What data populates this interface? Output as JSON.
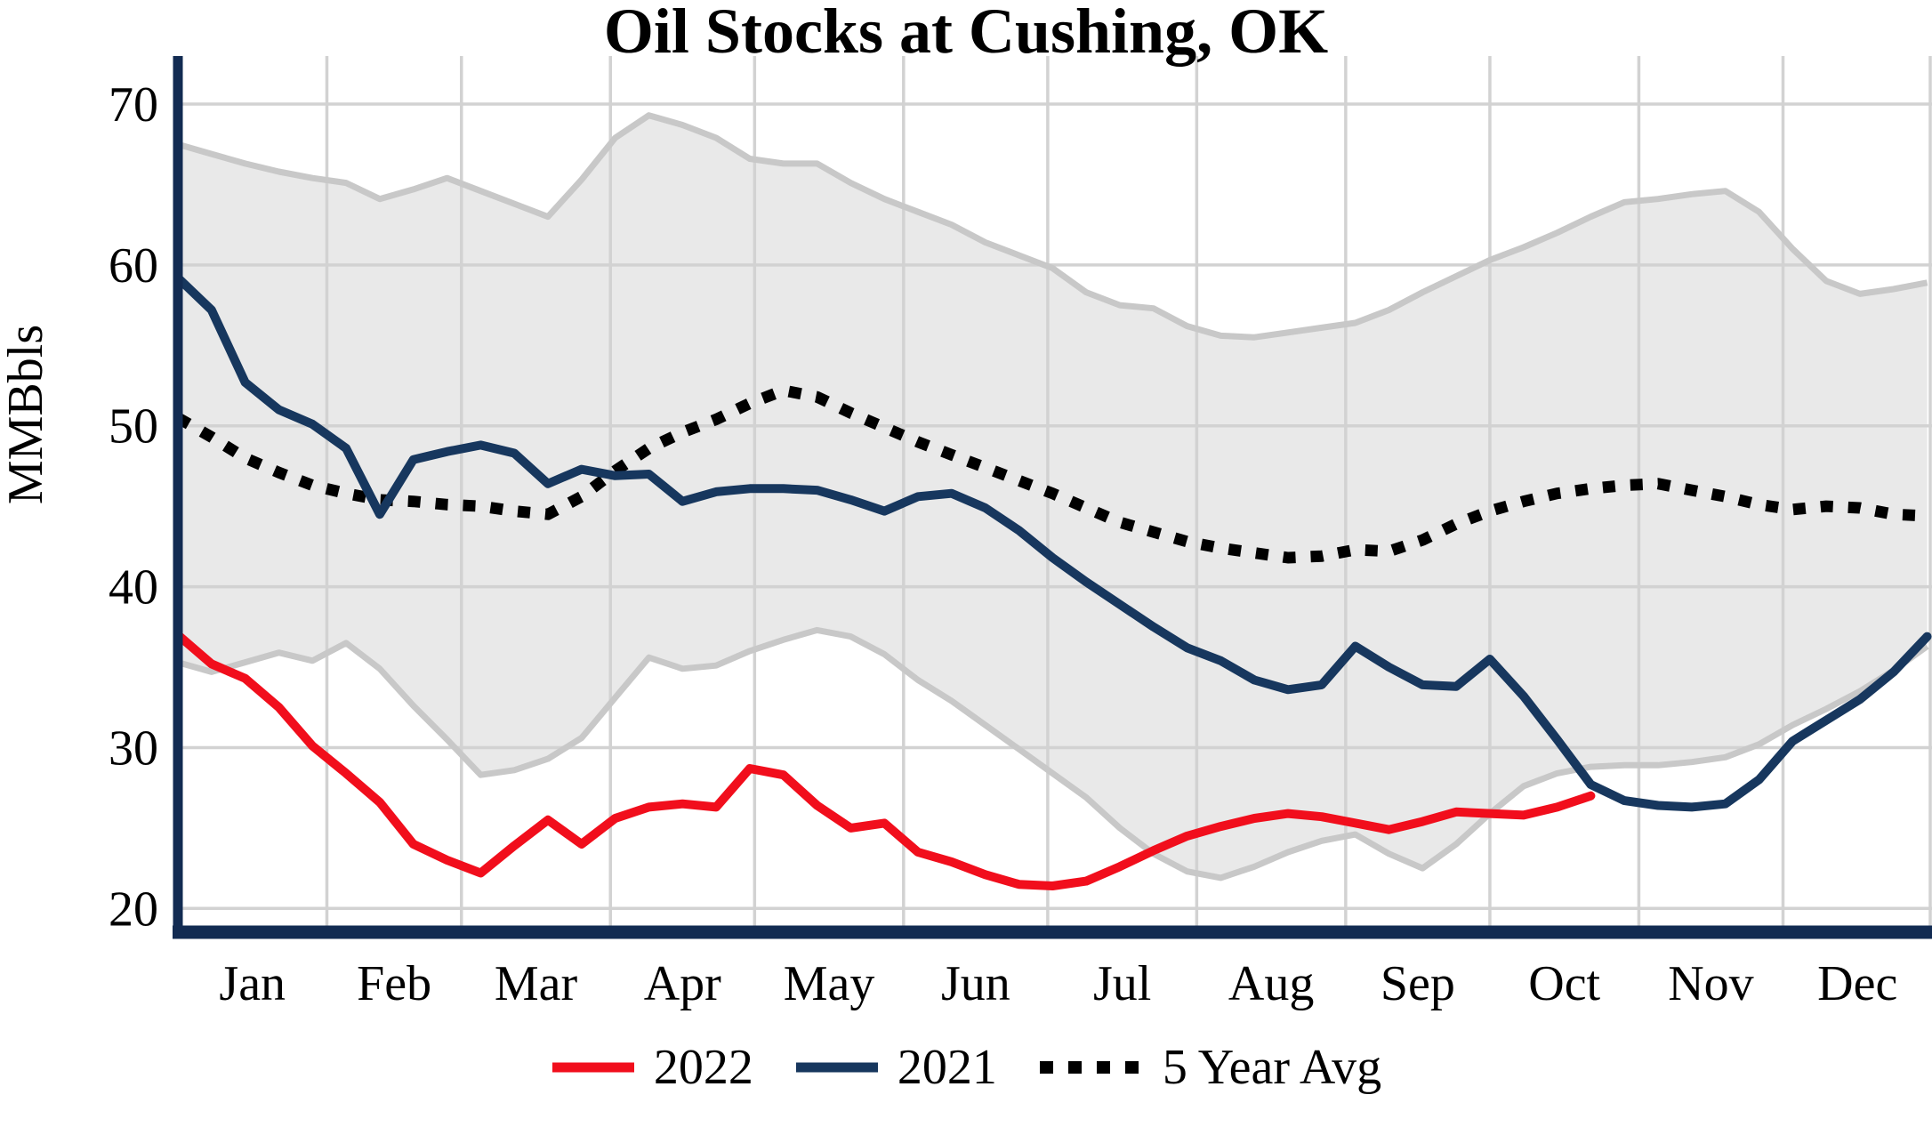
{
  "title": "Oil Stocks at Cushing, OK",
  "y_axis": {
    "label": "MMBbls",
    "ticks": [
      70,
      60,
      50,
      40,
      30,
      20
    ]
  },
  "x_axis": {
    "months": [
      "Jan",
      "Feb",
      "Mar",
      "Apr",
      "May",
      "Jun",
      "Jul",
      "Aug",
      "Sep",
      "Oct",
      "Nov",
      "Dec"
    ],
    "month_label_days": [
      15.5,
      45,
      74.5,
      105,
      135.5,
      166,
      196.5,
      227.5,
      258,
      288.5,
      319,
      349.5
    ],
    "gridline_days": [
      31,
      59,
      90,
      120,
      151,
      181,
      212,
      243,
      273,
      304,
      334,
      365
    ]
  },
  "legend": {
    "items": [
      {
        "label": "2022",
        "style": "solid",
        "color": "#f10e1c"
      },
      {
        "label": "2021",
        "style": "solid",
        "color": "#17375e"
      },
      {
        "label": "5 Year Avg",
        "style": "dotted",
        "color": "#000000"
      }
    ]
  },
  "colors": {
    "red_2022": "#f10e1c",
    "navy_2021": "#17375e",
    "avg_dotted": "#000000",
    "band_fill": "#e9e9e9",
    "band_edge": "#c8c8c8",
    "grid": "#d2d2d2",
    "axis": "#122b52",
    "background": "#ffffff"
  },
  "chart_data": {
    "type": "line",
    "title": "Oil Stocks at Cushing, OK",
    "xlabel": "",
    "ylabel": "MMBbls",
    "x_unit": "day_of_year (weekly points)",
    "xlim": [
      0,
      365
    ],
    "ylim": [
      18.5,
      73
    ],
    "grid": true,
    "legend_position": "bottom-center",
    "band": {
      "name": "5-Year Range",
      "x": [
        0,
        7,
        14,
        21,
        28,
        35,
        42,
        49,
        56,
        63,
        70,
        77,
        84,
        91,
        98,
        105,
        112,
        119,
        126,
        133,
        140,
        147,
        154,
        161,
        168,
        175,
        182,
        189,
        196,
        203,
        210,
        217,
        224,
        231,
        238,
        245,
        252,
        259,
        266,
        273,
        280,
        287,
        294,
        301,
        308,
        315,
        322,
        329,
        336,
        343,
        350,
        357,
        364
      ],
      "upper": [
        67.5,
        66.9,
        66.3,
        65.8,
        65.4,
        65.1,
        64.1,
        64.7,
        65.4,
        64.6,
        63.8,
        63.0,
        65.3,
        67.9,
        69.3,
        68.7,
        67.9,
        66.6,
        66.3,
        66.3,
        65.1,
        64.1,
        63.3,
        62.5,
        61.4,
        60.6,
        59.8,
        58.3,
        57.5,
        57.3,
        56.2,
        55.6,
        55.5,
        55.8,
        56.1,
        56.4,
        57.2,
        58.3,
        59.3,
        60.3,
        61.1,
        62.0,
        63.0,
        63.9,
        64.1,
        64.4,
        64.6,
        63.3,
        61.0,
        59.0,
        58.2,
        58.5,
        58.9
      ],
      "lower": [
        35.3,
        34.7,
        35.3,
        35.9,
        35.4,
        36.5,
        34.9,
        32.6,
        30.5,
        28.3,
        28.6,
        29.3,
        30.6,
        33.1,
        35.6,
        34.9,
        35.1,
        36.0,
        36.7,
        37.3,
        36.9,
        35.8,
        34.2,
        32.9,
        31.4,
        29.9,
        28.4,
        26.9,
        25.0,
        23.4,
        22.3,
        21.9,
        22.6,
        23.5,
        24.2,
        24.6,
        23.4,
        22.5,
        24.0,
        25.9,
        27.6,
        28.4,
        28.8,
        28.9,
        28.9,
        29.1,
        29.4,
        30.2,
        31.4,
        32.4,
        33.5,
        34.8,
        36.3
      ]
    },
    "series": [
      {
        "name": "2022",
        "style": "solid",
        "color": "#f10e1c",
        "x": [
          0,
          7,
          14,
          21,
          28,
          35,
          42,
          49,
          56,
          63,
          70,
          77,
          84,
          91,
          98,
          105,
          112,
          119,
          126,
          133,
          140,
          147,
          154,
          161,
          168,
          175,
          182,
          189,
          196,
          203,
          210,
          217,
          224,
          231,
          238,
          245,
          252,
          259,
          266,
          273,
          280,
          287,
          294
        ],
        "values": [
          37.0,
          35.2,
          34.3,
          32.5,
          30.1,
          28.4,
          26.6,
          24.0,
          23.0,
          22.2,
          23.9,
          25.5,
          24.0,
          25.6,
          26.3,
          26.5,
          26.3,
          28.7,
          28.3,
          26.4,
          25.0,
          25.3,
          23.5,
          22.9,
          22.1,
          21.5,
          21.4,
          21.7,
          22.6,
          23.6,
          24.5,
          25.1,
          25.6,
          25.9,
          25.7,
          25.3,
          24.9,
          25.4,
          26.0,
          25.9,
          25.8,
          26.3,
          27.0
        ]
      },
      {
        "name": "2021",
        "style": "solid",
        "color": "#17375e",
        "x": [
          0,
          7,
          14,
          21,
          28,
          35,
          42,
          49,
          56,
          63,
          70,
          77,
          84,
          91,
          98,
          105,
          112,
          119,
          126,
          133,
          140,
          147,
          154,
          161,
          168,
          175,
          182,
          189,
          196,
          203,
          210,
          217,
          224,
          231,
          238,
          245,
          252,
          259,
          266,
          273,
          280,
          287,
          294,
          301,
          308,
          315,
          322,
          329,
          336,
          343,
          350,
          357,
          364
        ],
        "values": [
          59.2,
          57.2,
          52.7,
          51.0,
          50.1,
          48.6,
          44.5,
          47.9,
          48.4,
          48.8,
          48.3,
          46.4,
          47.3,
          46.9,
          47.0,
          45.3,
          45.9,
          46.1,
          46.1,
          46.0,
          45.4,
          44.7,
          45.6,
          45.8,
          44.9,
          43.5,
          41.8,
          40.3,
          38.9,
          37.5,
          36.2,
          35.4,
          34.2,
          33.6,
          33.9,
          36.3,
          35.0,
          33.9,
          33.8,
          35.5,
          33.2,
          30.5,
          27.7,
          26.7,
          26.4,
          26.3,
          26.5,
          28.0,
          30.4,
          31.7,
          33.0,
          34.7,
          36.9
        ]
      },
      {
        "name": "5 Year Avg",
        "style": "dotted",
        "color": "#000000",
        "x": [
          0,
          7,
          14,
          21,
          28,
          35,
          42,
          49,
          56,
          63,
          70,
          77,
          84,
          91,
          98,
          105,
          112,
          119,
          126,
          133,
          140,
          147,
          154,
          161,
          168,
          175,
          182,
          189,
          196,
          203,
          210,
          217,
          224,
          231,
          238,
          245,
          252,
          259,
          266,
          273,
          280,
          287,
          294,
          301,
          308,
          315,
          322,
          329,
          336,
          343,
          350,
          357,
          364
        ],
        "values": [
          50.5,
          49.3,
          48.0,
          47.1,
          46.3,
          45.8,
          45.4,
          45.3,
          45.1,
          45.0,
          44.7,
          44.5,
          45.6,
          47.2,
          48.6,
          49.6,
          50.4,
          51.4,
          52.2,
          51.8,
          50.8,
          49.9,
          49.0,
          48.2,
          47.4,
          46.6,
          45.8,
          44.9,
          44.0,
          43.4,
          42.8,
          42.4,
          42.1,
          41.8,
          41.9,
          42.3,
          42.2,
          42.9,
          43.9,
          44.7,
          45.3,
          45.8,
          46.1,
          46.3,
          46.4,
          46.0,
          45.6,
          45.1,
          44.8,
          45.0,
          44.9,
          44.5,
          44.4
        ]
      }
    ]
  }
}
